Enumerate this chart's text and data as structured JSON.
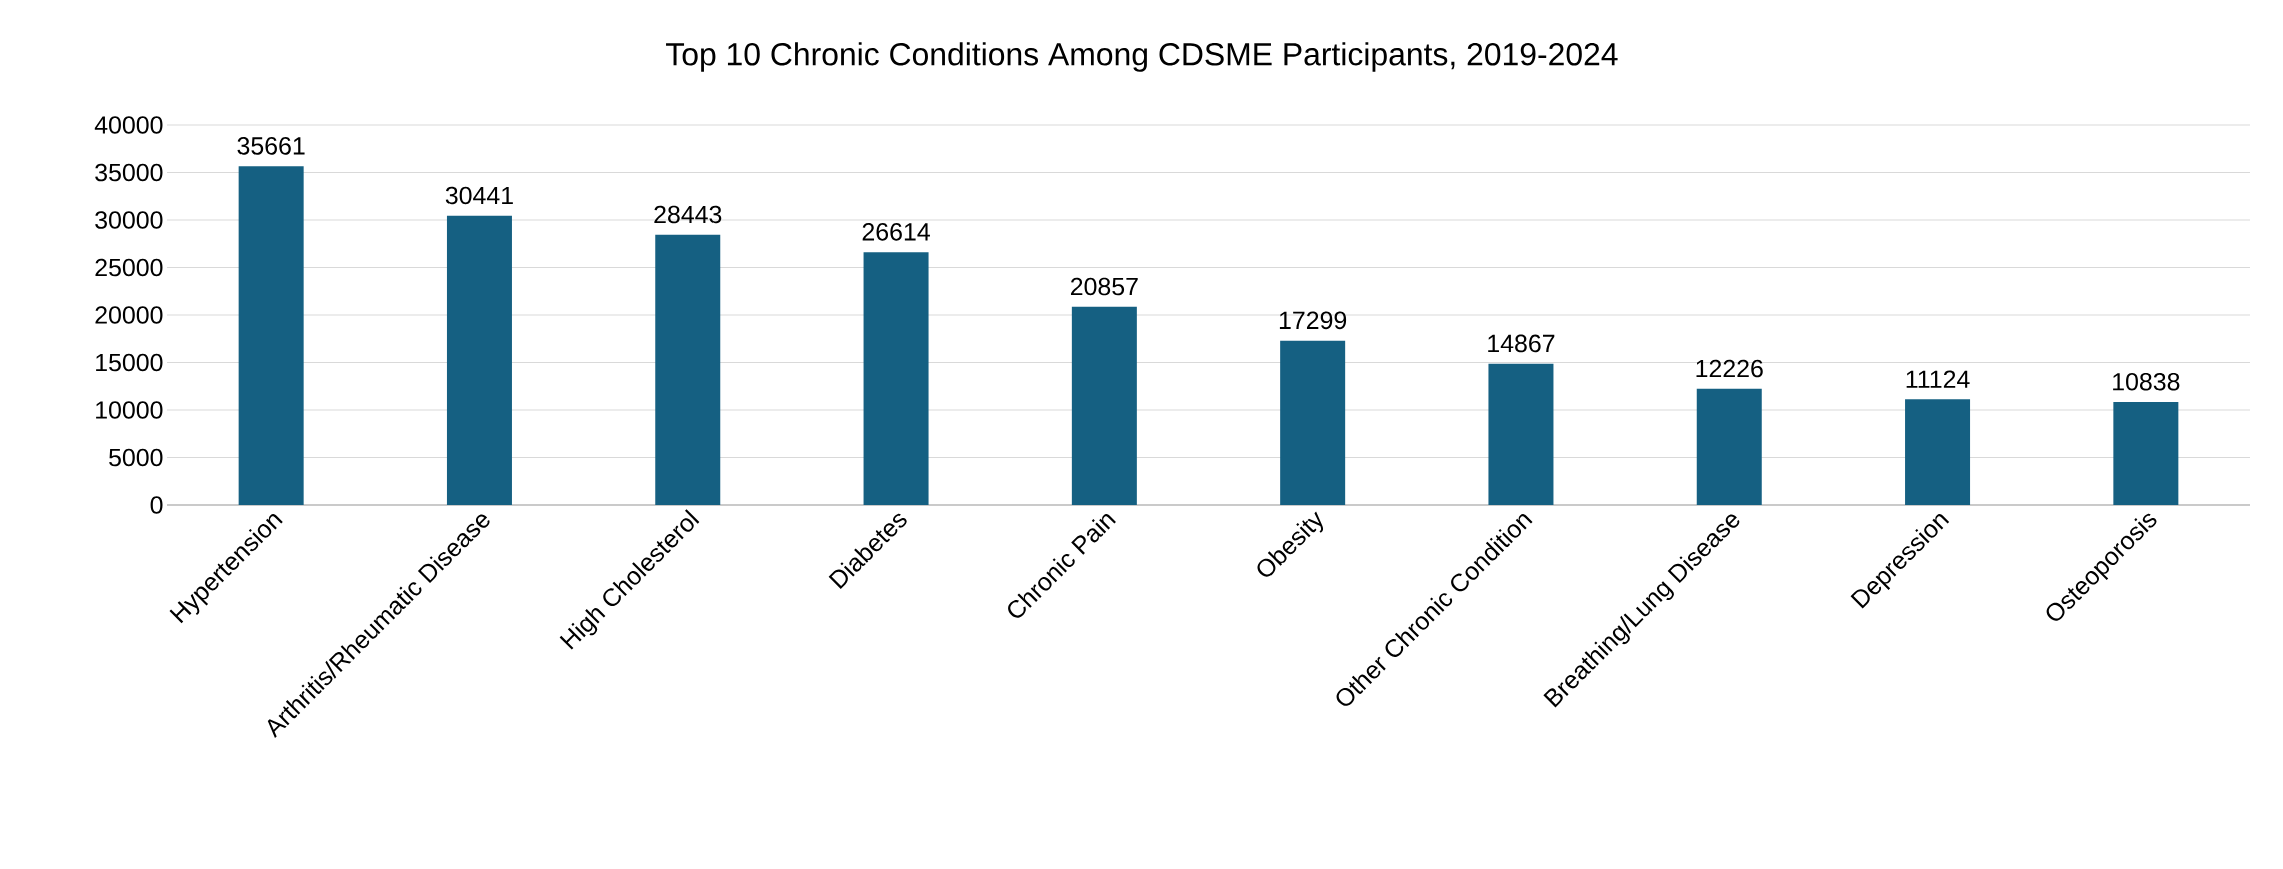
{
  "chart_data": {
    "type": "bar",
    "title": "Top 10 Chronic Conditions Among CDSME Participants, 2019-2024",
    "categories": [
      "Hypertension",
      "Arthritis/Rheumatic Disease",
      "High Cholesterol",
      "Diabetes",
      "Chronic Pain",
      "Obesity",
      "Other Chronic Condition",
      "Breathing/Lung Disease",
      "Depression",
      "Osteoporosis"
    ],
    "values": [
      35661,
      30441,
      28443,
      26614,
      20857,
      17299,
      14867,
      12226,
      11124,
      10838
    ],
    "color": "#156082",
    "ylim": [
      0,
      40000
    ],
    "yticks": [
      0,
      5000,
      10000,
      15000,
      20000,
      25000,
      30000,
      35000,
      40000
    ],
    "grid": "y",
    "data_labels": true
  }
}
